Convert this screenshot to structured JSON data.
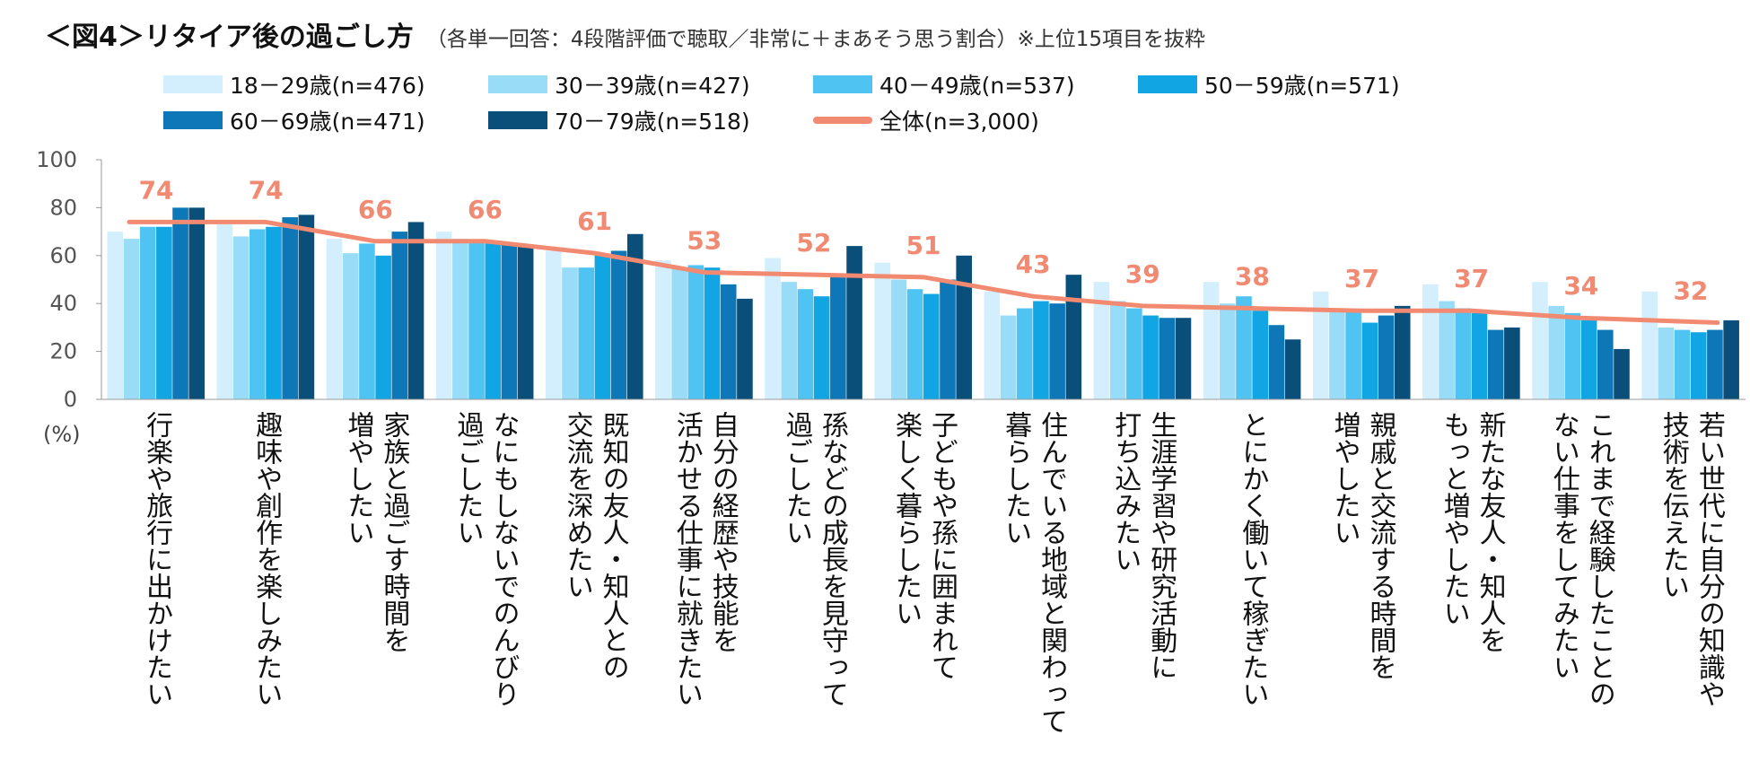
{
  "header": {
    "title": "＜図4＞リタイア後の過ごし方",
    "subtitle": "（各単一回答：4段階評価で聴取／非常に＋まあそう思う割合）※上位15項目を抜粋"
  },
  "chart_data": {
    "type": "bar",
    "title": "＜図4＞リタイア後の過ごし方",
    "ylabel": "(%)",
    "ylim": [
      0,
      100
    ],
    "yticks": [
      "0",
      "20",
      "40",
      "60",
      "80",
      "100"
    ],
    "legend_position": "top",
    "categories": [
      "行楽や旅行に出かけたい",
      "趣味や創作を楽しみたい",
      "家族と過ごす時間を\n増やしたい",
      "なにもしないでのんびり\n過ごしたい",
      "既知の友人・知人との\n交流を深めたい",
      "自分の経歴や技能を\n活かせる仕事に就きたい",
      "孫などの成長を見守って\n過ごしたい",
      "子どもや孫に囲まれて\n楽しく暮らしたい",
      "住んでいる地域と関わって\n暮らしたい",
      "生涯学習や研究活動に\n打ち込みたい",
      "とにかく働いて稼ぎたい",
      "親戚と交流する時間を\n増やしたい",
      "新たな友人・知人を\nもっと増やしたい",
      "これまで経験したことの\nない仕事をしてみたい",
      "若い世代に自分の知識や\n技術を伝えたい"
    ],
    "series": [
      {
        "name": "18－29歳(n=476)",
        "color": "#d3eefc",
        "values": [
          70,
          73,
          67,
          70,
          62,
          58,
          59,
          57,
          45,
          49,
          49,
          45,
          48,
          49,
          45
        ]
      },
      {
        "name": "30－39歳(n=427)",
        "color": "#99dcf8",
        "values": [
          67,
          68,
          61,
          67,
          55,
          55,
          49,
          50,
          35,
          41,
          40,
          37,
          41,
          39,
          30
        ]
      },
      {
        "name": "40－49歳(n=537)",
        "color": "#4fc4f2",
        "values": [
          72,
          71,
          65,
          66,
          55,
          56,
          46,
          46,
          38,
          38,
          43,
          37,
          38,
          36,
          29
        ]
      },
      {
        "name": "50－59歳(n=571)",
        "color": "#12a5e4",
        "values": [
          72,
          72,
          60,
          65,
          60,
          55,
          43,
          44,
          41,
          35,
          37,
          32,
          36,
          33,
          28
        ]
      },
      {
        "name": "60－69歳(n=471)",
        "color": "#0d77b7",
        "values": [
          80,
          76,
          70,
          65,
          62,
          48,
          52,
          50,
          40,
          34,
          31,
          35,
          29,
          29,
          29
        ]
      },
      {
        "name": "70－79歳(n=518)",
        "color": "#0a4f7a",
        "values": [
          80,
          77,
          74,
          64,
          69,
          42,
          64,
          60,
          52,
          34,
          25,
          39,
          30,
          21,
          33
        ]
      }
    ],
    "overall": {
      "name": "全体(n=3,000)",
      "color": "#f28a72",
      "values": [
        74,
        74,
        66,
        66,
        61,
        53,
        52,
        51,
        43,
        39,
        38,
        37,
        37,
        34,
        32
      ]
    }
  }
}
